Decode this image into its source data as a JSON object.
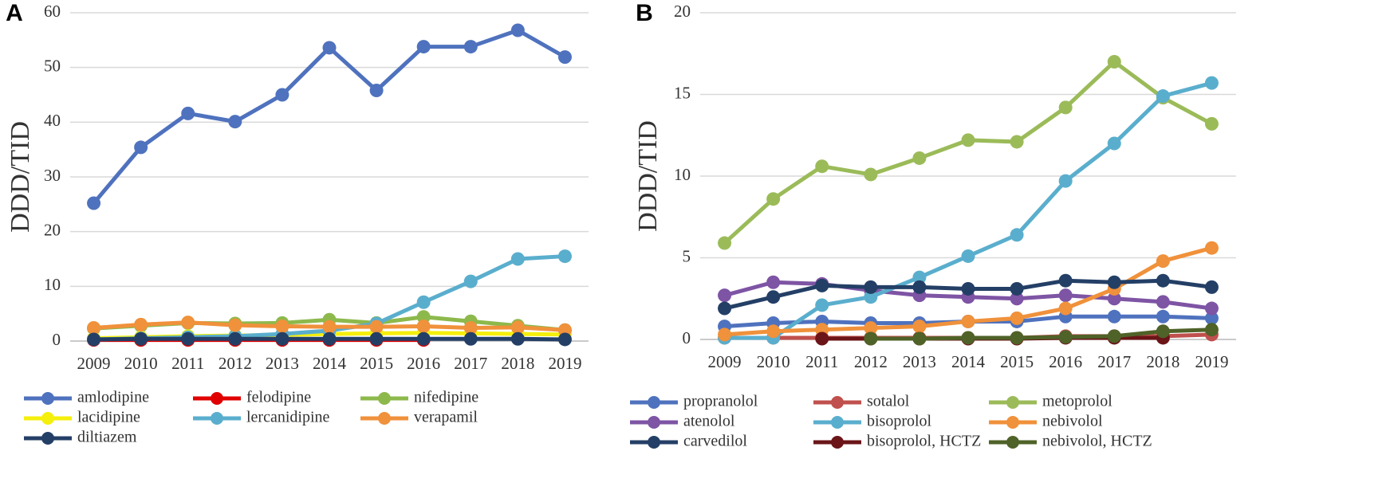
{
  "chart_data": [
    {
      "type": "line",
      "panel_label": "A",
      "y_label": "DDD/TID",
      "categories": [
        "2009",
        "2010",
        "2011",
        "2012",
        "2013",
        "2014",
        "2015",
        "2016",
        "2017",
        "2018",
        "2019"
      ],
      "ylim": [
        0,
        60
      ],
      "yticks": [
        0,
        10,
        20,
        30,
        40,
        50,
        60
      ],
      "grid": true,
      "series": [
        {
          "name": "amlodipine",
          "color": "#4f72be",
          "values": [
            25.2,
            35.4,
            41.6,
            40.1,
            45.0,
            53.6,
            45.8,
            53.8,
            53.8,
            56.8,
            51.9
          ]
        },
        {
          "name": "felodipine",
          "color": "#e00000",
          "values": [
            0.2,
            0.2,
            0.2,
            0.2,
            0.2,
            0.2,
            0.2,
            0.2,
            null,
            null,
            null
          ]
        },
        {
          "name": "nifedipine",
          "color": "#8db94c",
          "values": [
            2.3,
            2.8,
            3.3,
            3.2,
            3.3,
            3.9,
            3.3,
            4.4,
            3.6,
            2.8,
            2.0
          ]
        },
        {
          "name": "lacidipine",
          "color": "#f5ef0c",
          "values": [
            0.5,
            0.7,
            0.9,
            1.0,
            1.1,
            1.3,
            1.4,
            1.5,
            1.4,
            1.3,
            1.2
          ]
        },
        {
          "name": "lercanidipine",
          "color": "#5aaecd",
          "values": [
            0.3,
            0.5,
            0.7,
            0.9,
            1.3,
            1.9,
            3.2,
            7.1,
            10.9,
            15.0,
            15.5
          ]
        },
        {
          "name": "verapamil",
          "color": "#f0913b",
          "values": [
            2.4,
            3.0,
            3.4,
            2.9,
            2.7,
            2.6,
            2.6,
            2.7,
            2.4,
            2.5,
            2.0
          ]
        },
        {
          "name": "diltiazem",
          "color": "#243f66",
          "values": [
            0.3,
            0.4,
            0.4,
            0.4,
            0.4,
            0.4,
            0.4,
            0.4,
            0.4,
            0.4,
            0.3
          ]
        }
      ]
    },
    {
      "type": "line",
      "panel_label": "B",
      "y_label": "DDD/TID",
      "categories": [
        "2009",
        "2010",
        "2011",
        "2012",
        "2013",
        "2014",
        "2015",
        "2016",
        "2017",
        "2018",
        "2019"
      ],
      "ylim": [
        0,
        20
      ],
      "yticks": [
        0,
        5,
        10,
        15,
        20
      ],
      "grid": true,
      "series": [
        {
          "name": "propranolol",
          "color": "#4f72be",
          "values": [
            0.8,
            1.0,
            1.1,
            1.0,
            1.0,
            1.1,
            1.1,
            1.4,
            1.4,
            1.4,
            1.3
          ]
        },
        {
          "name": "sotalol",
          "color": "#c0504d",
          "values": [
            0.1,
            0.1,
            0.1,
            0.1,
            0.1,
            0.1,
            0.1,
            0.2,
            0.2,
            0.2,
            0.3
          ]
        },
        {
          "name": "metoprolol",
          "color": "#9bbb59",
          "values": [
            5.9,
            8.6,
            10.6,
            10.1,
            11.1,
            12.2,
            12.1,
            14.2,
            17.0,
            14.8,
            13.2
          ]
        },
        {
          "name": "atenolol",
          "color": "#7e54a4",
          "values": [
            2.7,
            3.5,
            3.4,
            3.0,
            2.7,
            2.6,
            2.5,
            2.7,
            2.5,
            2.3,
            1.9
          ]
        },
        {
          "name": "bisoprolol",
          "color": "#5aaecd",
          "values": [
            0.1,
            0.1,
            2.1,
            2.6,
            3.8,
            5.1,
            6.4,
            9.7,
            12.0,
            14.9,
            15.7
          ]
        },
        {
          "name": "nebivolol",
          "color": "#f0913b",
          "values": [
            0.3,
            0.5,
            0.6,
            0.7,
            0.8,
            1.1,
            1.3,
            1.9,
            3.1,
            4.8,
            5.6
          ]
        },
        {
          "name": "carvedilol",
          "color": "#243f66",
          "values": [
            1.9,
            2.6,
            3.3,
            3.2,
            3.2,
            3.1,
            3.1,
            3.6,
            3.5,
            3.6,
            3.2
          ]
        },
        {
          "name": "bisoprolol, HCTZ",
          "color": "#6b1518",
          "values": [
            null,
            null,
            0.05,
            0.05,
            0.05,
            0.05,
            0.05,
            0.1,
            0.1,
            0.1,
            null
          ]
        },
        {
          "name": "nebivolol, HCTZ",
          "color": "#4f6228",
          "values": [
            null,
            null,
            null,
            0.05,
            0.05,
            0.1,
            0.1,
            0.15,
            0.2,
            0.5,
            0.6
          ]
        }
      ]
    }
  ]
}
